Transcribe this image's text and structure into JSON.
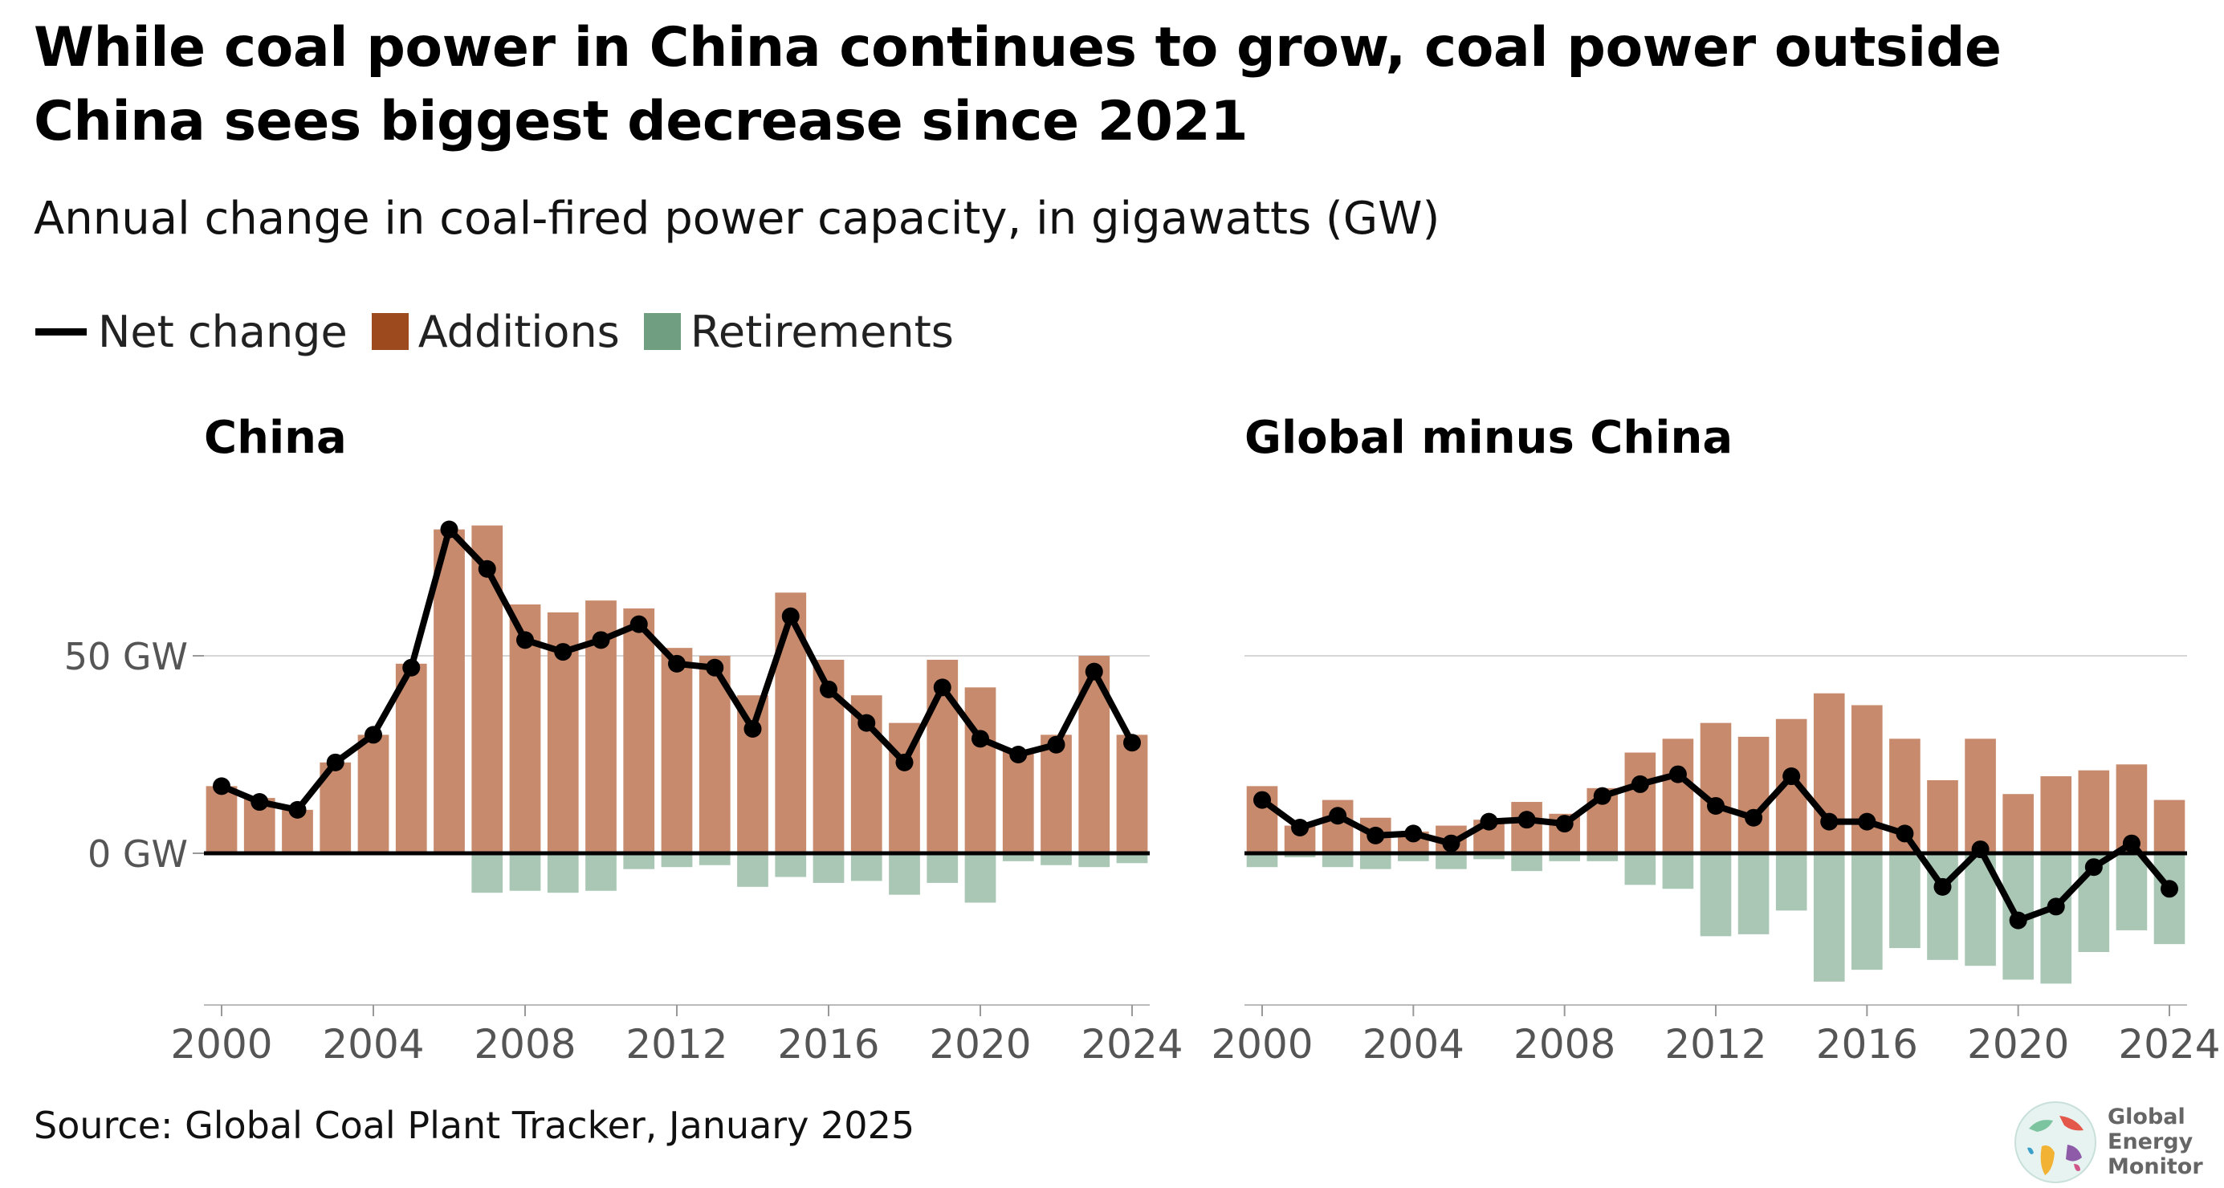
{
  "header": {
    "title": "While coal power in China continues to grow, coal power outside China sees biggest decrease since 2021",
    "subtitle": "Annual change in coal-fired power capacity, in gigawatts (GW)"
  },
  "legend": {
    "items": [
      {
        "label": "Net change",
        "color": "#000000",
        "kind": "line"
      },
      {
        "label": "Additions",
        "color": "#9c4a1e",
        "kind": "box"
      },
      {
        "label": "Retirements",
        "color": "#6f9e80",
        "kind": "box"
      }
    ]
  },
  "colors": {
    "additions_bar": "#c78a6c",
    "retirements_bar": "#a9c7b4",
    "net_line": "#000000",
    "grid": "#d6d6d6",
    "tick_text": "#555555"
  },
  "chart_data": [
    {
      "type": "bar",
      "title": "China",
      "x": [
        2000,
        2001,
        2002,
        2003,
        2004,
        2005,
        2006,
        2007,
        2008,
        2009,
        2010,
        2011,
        2012,
        2013,
        2014,
        2015,
        2016,
        2017,
        2018,
        2019,
        2020,
        2021,
        2022,
        2023,
        2024
      ],
      "series": [
        {
          "name": "Additions",
          "values": [
            17,
            14,
            11,
            23,
            30,
            48,
            82,
            83,
            63,
            61,
            64,
            62,
            52,
            50,
            40,
            66,
            49,
            40,
            33,
            49,
            42,
            26,
            30,
            50,
            30
          ]
        },
        {
          "name": "Retirements",
          "values": [
            0,
            0,
            0,
            0,
            0,
            0,
            0,
            -10,
            -9.5,
            -10,
            -9.5,
            -4,
            -3.5,
            -3,
            -8.5,
            -6,
            -7.5,
            -7,
            -10.5,
            -7.5,
            -12.5,
            -2,
            -3,
            -3.5,
            -2.5
          ]
        },
        {
          "name": "Net change",
          "values": [
            17,
            13,
            11,
            23,
            30,
            47,
            82,
            72,
            54,
            51,
            54,
            58,
            48,
            47,
            31.5,
            60,
            41.5,
            33,
            23,
            42,
            29,
            25,
            27.5,
            46,
            28
          ]
        }
      ],
      "yticks": [
        {
          "value": 0,
          "label": "0 GW"
        },
        {
          "value": 50,
          "label": "50 GW"
        }
      ],
      "xticks": [
        2000,
        2004,
        2008,
        2012,
        2016,
        2020,
        2024
      ],
      "ylim": [
        -40,
        88
      ]
    },
    {
      "type": "bar",
      "title": "Global minus China",
      "x": [
        2000,
        2001,
        2002,
        2003,
        2004,
        2005,
        2006,
        2007,
        2008,
        2009,
        2010,
        2011,
        2012,
        2013,
        2014,
        2015,
        2016,
        2017,
        2018,
        2019,
        2020,
        2021,
        2022,
        2023,
        2024
      ],
      "series": [
        {
          "name": "Additions",
          "values": [
            17,
            7,
            13.5,
            9,
            5.5,
            7,
            8.5,
            13,
            10,
            16.5,
            25.5,
            29,
            33,
            29.5,
            34,
            40.5,
            37.5,
            29,
            18.5,
            29,
            15,
            19.5,
            21,
            22.5,
            13.5
          ]
        },
        {
          "name": "Retirements",
          "values": [
            -3.5,
            -1,
            -3.5,
            -4,
            -2,
            -4,
            -1.5,
            -4.5,
            -2,
            -2,
            -8,
            -9,
            -21,
            -20.5,
            -14.5,
            -32.5,
            -29.5,
            -24,
            -27,
            -28.5,
            -32,
            -33,
            -25,
            -19.5,
            -23
          ]
        },
        {
          "name": "Net change",
          "values": [
            13.5,
            6.5,
            9.5,
            4.5,
            5,
            2.5,
            8,
            8.5,
            7.5,
            14.5,
            17.5,
            20,
            12,
            9,
            19.5,
            8,
            8,
            5,
            -8.5,
            1,
            -17,
            -13.5,
            -3.5,
            2.5,
            -9
          ]
        }
      ],
      "yticks": [
        {
          "value": 0,
          "label": ""
        },
        {
          "value": 50,
          "label": ""
        }
      ],
      "xticks": [
        2000,
        2004,
        2008,
        2012,
        2016,
        2020,
        2024
      ],
      "ylim": [
        -40,
        88
      ]
    }
  ],
  "footer": {
    "source": "Source: Global Coal Plant Tracker, January 2025",
    "logo_lines": [
      "Global",
      "Energy",
      "Monitor"
    ]
  }
}
